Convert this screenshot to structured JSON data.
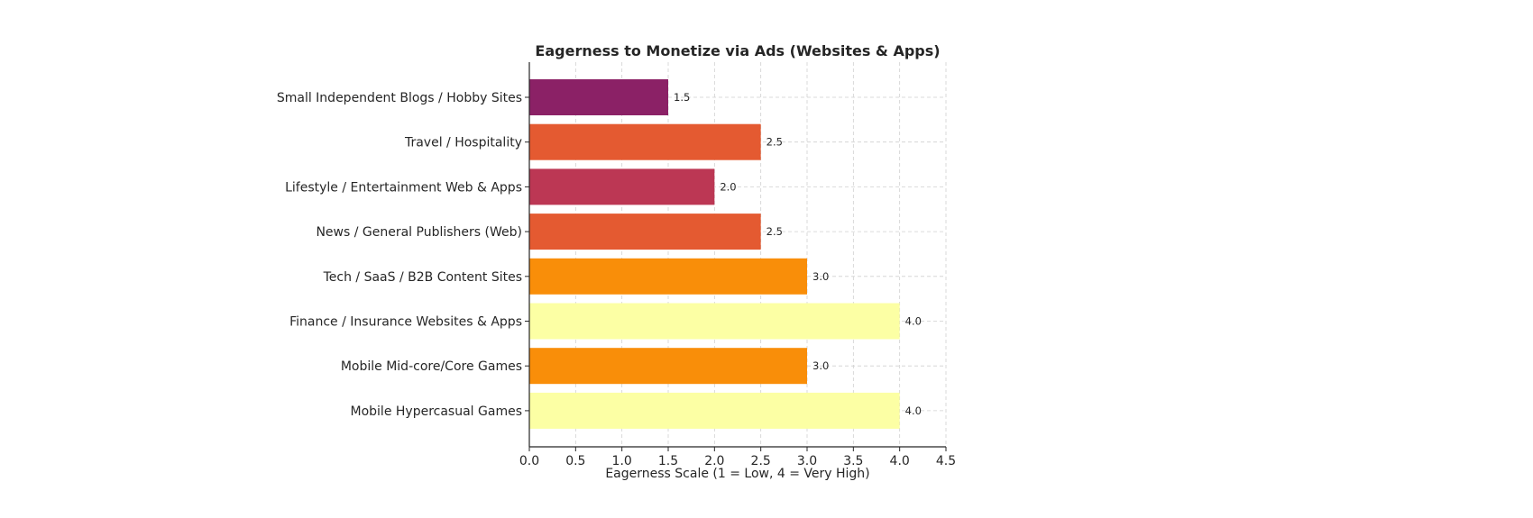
{
  "chart_data": {
    "type": "bar",
    "orientation": "horizontal",
    "title": "Eagerness to Monetize via Ads (Websites & Apps)",
    "xlabel": "Eagerness Scale (1 = Low, 4 = Very High)",
    "ylabel": "",
    "xlim": [
      0,
      4.5
    ],
    "xticks": [
      "0.0",
      "0.5",
      "1.0",
      "1.5",
      "2.0",
      "2.5",
      "3.0",
      "3.5",
      "4.0",
      "4.5"
    ],
    "grid": true,
    "categories": [
      "Small Independent Blogs / Hobby Sites",
      "Travel / Hospitality",
      "Lifestyle / Entertainment Web & Apps",
      "News / General Publishers (Web)",
      "Tech / SaaS / B2B Content Sites",
      "Finance / Insurance Websites & Apps",
      "Mobile Mid-core/Core Games",
      "Mobile Hypercasual Games"
    ],
    "values": [
      1.5,
      2.5,
      2.0,
      2.5,
      3.0,
      4.0,
      3.0,
      4.0
    ],
    "value_labels": [
      "1.5",
      "2.5",
      "2.0",
      "2.5",
      "3.0",
      "4.0",
      "3.0",
      "4.0"
    ],
    "colors": [
      "#8B2166",
      "#E45A31",
      "#BC3754",
      "#E45A31",
      "#F98E09",
      "#FCFFA4",
      "#F98E09",
      "#FCFFA4"
    ]
  }
}
